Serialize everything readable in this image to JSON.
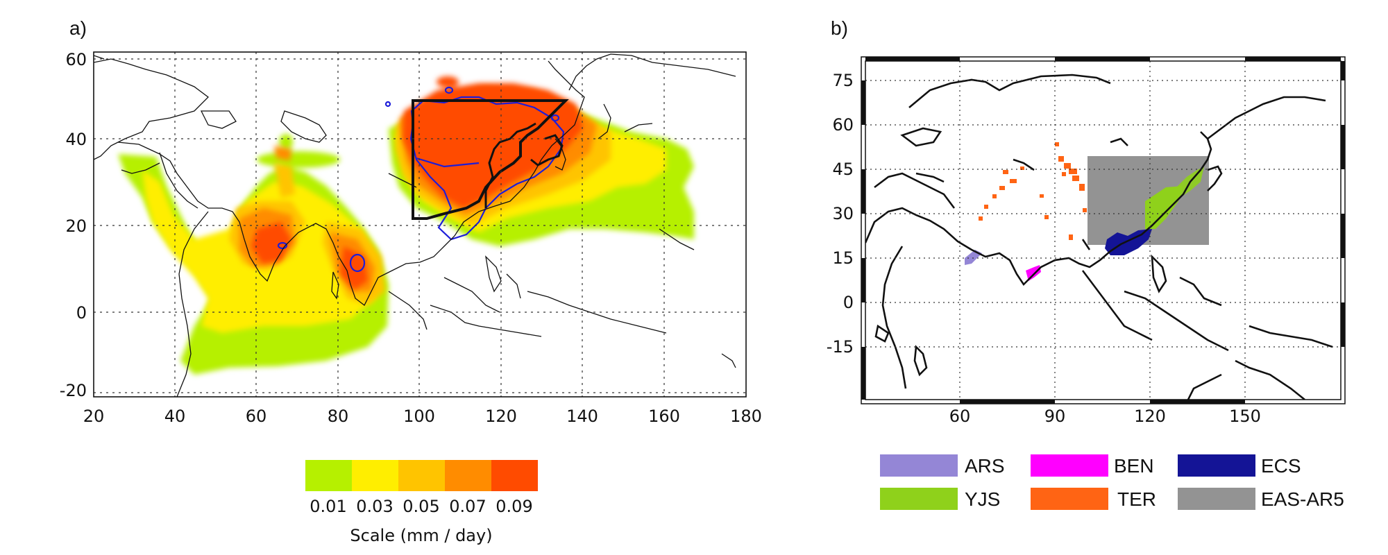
{
  "panel_a": {
    "label": "a)",
    "x_ticks": [
      "20",
      "40",
      "60",
      "80",
      "100",
      "120",
      "140",
      "160",
      "180"
    ],
    "y_ticks": [
      "60",
      "40",
      "20",
      "0",
      "-20"
    ],
    "colorbar": {
      "ticks": [
        "0.01",
        "0.03",
        "0.05",
        "0.07",
        "0.09"
      ],
      "colors": [
        "#b6f000",
        "#ffee00",
        "#ffc400",
        "#ff8c00",
        "#ff4b00"
      ],
      "title": "Scale (mm / day)"
    }
  },
  "panel_b": {
    "label": "b)",
    "x_ticks": [
      "60",
      "90",
      "120",
      "150"
    ],
    "y_ticks": [
      "75",
      "60",
      "45",
      "30",
      "15",
      "0",
      "-15"
    ],
    "legend": [
      {
        "label": "ARS",
        "color": "#9486d6"
      },
      {
        "label": "BEN",
        "color": "#ff00ff"
      },
      {
        "label": "ECS",
        "color": "#141496"
      },
      {
        "label": "YJS",
        "color": "#8fd11b"
      },
      {
        "label": "TER",
        "color": "#ff6414"
      },
      {
        "label": "EAS-AR5",
        "color": "#939393"
      }
    ]
  }
}
